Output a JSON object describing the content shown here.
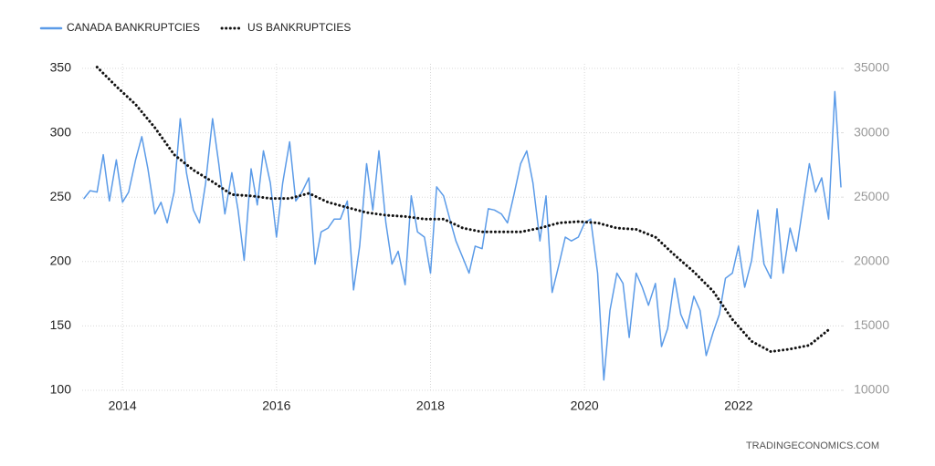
{
  "chart_data": {
    "type": "line",
    "watermark": "TRADINGECONOMICS.COM",
    "xlim": [
      2013.5,
      2023.33
    ],
    "xticks": [
      2014,
      2016,
      2018,
      2020,
      2022
    ],
    "ylim": [
      100,
      350
    ],
    "yticks": [
      100,
      150,
      200,
      250,
      300,
      350
    ],
    "y2lim": [
      10000,
      35000
    ],
    "y2ticks": [
      10000,
      15000,
      20000,
      25000,
      30000,
      35000
    ],
    "grid": true,
    "legend": "top-left",
    "series": [
      {
        "name": "CANADA BANKRUPTCIES",
        "color": "#5b9be8",
        "style": "solid",
        "x": [
          2013.5,
          2013.58,
          2013.67,
          2013.75,
          2013.83,
          2013.92,
          2014,
          2014.08,
          2014.17,
          2014.25,
          2014.33,
          2014.42,
          2014.5,
          2014.58,
          2014.67,
          2014.75,
          2014.83,
          2014.92,
          2015,
          2015.08,
          2015.17,
          2015.25,
          2015.33,
          2015.42,
          2015.5,
          2015.58,
          2015.67,
          2015.75,
          2015.83,
          2015.92,
          2016,
          2016.08,
          2016.17,
          2016.25,
          2016.33,
          2016.42,
          2016.5,
          2016.58,
          2016.67,
          2016.75,
          2016.83,
          2016.92,
          2017,
          2017.08,
          2017.17,
          2017.25,
          2017.33,
          2017.42,
          2017.5,
          2017.58,
          2017.67,
          2017.75,
          2017.83,
          2017.92,
          2018,
          2018.08,
          2018.17,
          2018.25,
          2018.33,
          2018.42,
          2018.5,
          2018.58,
          2018.67,
          2018.75,
          2018.83,
          2018.92,
          2019,
          2019.08,
          2019.17,
          2019.25,
          2019.33,
          2019.42,
          2019.5,
          2019.58,
          2019.67,
          2019.75,
          2019.83,
          2019.92,
          2020,
          2020.08,
          2020.17,
          2020.25,
          2020.33,
          2020.42,
          2020.5,
          2020.58,
          2020.67,
          2020.75,
          2020.83,
          2020.92,
          2021,
          2021.08,
          2021.17,
          2021.25,
          2021.33,
          2021.42,
          2021.5,
          2021.58,
          2021.67,
          2021.75,
          2021.83,
          2021.92,
          2022,
          2022.08,
          2022.17,
          2022.25,
          2022.33,
          2022.42,
          2022.5,
          2022.58,
          2022.67,
          2022.75,
          2022.83,
          2022.92,
          2023,
          2023.08,
          2023.17,
          2023.25,
          2023.33
        ],
        "values": [
          249,
          255,
          254,
          283,
          247,
          279,
          246,
          254,
          279,
          297,
          272,
          237,
          246,
          230,
          254,
          311,
          269,
          240,
          230,
          261,
          311,
          276,
          237,
          269,
          240,
          201,
          272,
          244,
          286,
          261,
          219,
          261,
          293,
          247,
          254,
          265,
          198,
          223,
          226,
          233,
          233,
          247,
          178,
          212,
          276,
          240,
          286,
          230,
          198,
          208,
          182,
          251,
          223,
          219,
          191,
          258,
          251,
          233,
          216,
          203,
          191,
          212,
          210,
          241,
          240,
          237,
          230,
          251,
          276,
          286,
          261,
          216,
          251,
          176,
          198,
          219,
          216,
          219,
          230,
          233,
          191,
          108,
          162,
          191,
          183,
          141,
          191,
          180,
          166,
          183,
          134,
          148,
          187,
          159,
          148,
          173,
          162,
          127,
          145,
          159,
          187,
          191,
          212,
          180,
          201,
          240,
          198,
          187,
          241,
          191,
          226,
          208,
          240,
          276,
          254,
          265,
          233,
          332,
          258
        ]
      },
      {
        "name": "US BANKRUPTCIES",
        "color": "#111111",
        "style": "dotted",
        "axis": "y2",
        "x": [
          2013.67,
          2013.92,
          2014.17,
          2014.42,
          2014.67,
          2014.92,
          2015.17,
          2015.42,
          2015.67,
          2015.92,
          2016.17,
          2016.42,
          2016.67,
          2016.92,
          2017.17,
          2017.42,
          2017.67,
          2017.92,
          2018.17,
          2018.42,
          2018.67,
          2018.92,
          2019.17,
          2019.42,
          2019.67,
          2019.92,
          2020.17,
          2020.42,
          2020.67,
          2020.92,
          2021.17,
          2021.42,
          2021.67,
          2021.92,
          2022.17,
          2022.42,
          2022.67,
          2022.92,
          2023.17
        ],
        "values": [
          35100,
          33600,
          32200,
          30400,
          28300,
          27100,
          26200,
          25200,
          25100,
          24900,
          24900,
          25300,
          24600,
          24200,
          23800,
          23600,
          23500,
          23300,
          23300,
          22600,
          22300,
          22300,
          22300,
          22600,
          23000,
          23100,
          23000,
          22600,
          22500,
          21900,
          20500,
          19200,
          17700,
          15500,
          13800,
          13000,
          13200,
          13500,
          14700
        ]
      }
    ]
  }
}
